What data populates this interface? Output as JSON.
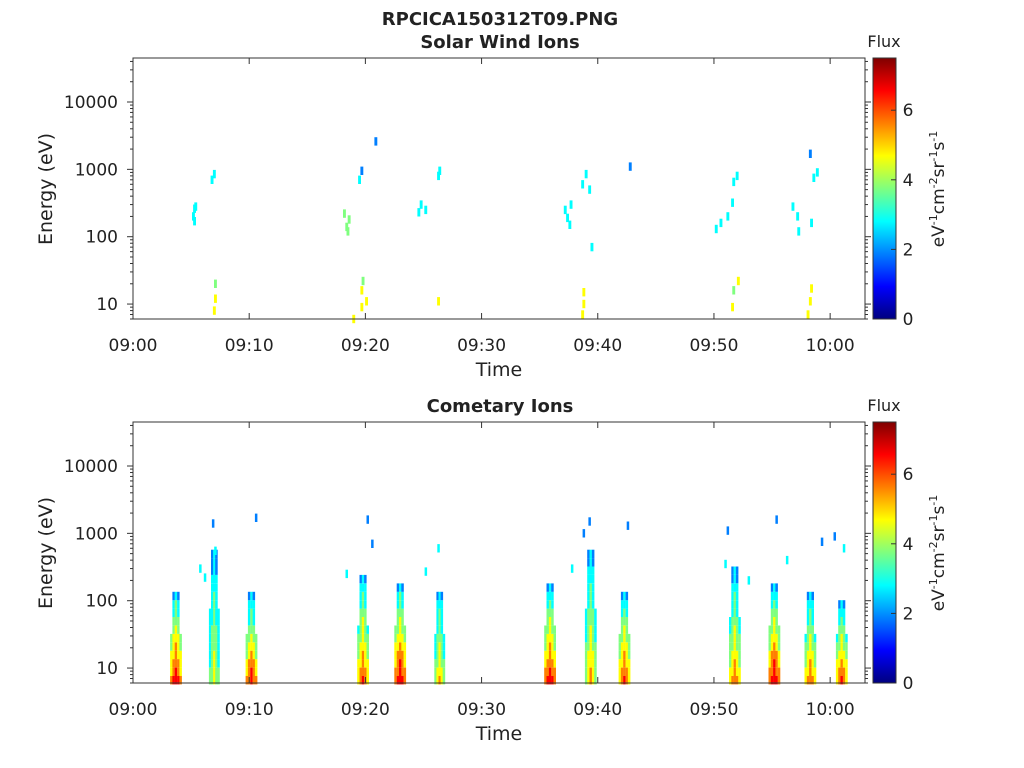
{
  "figure_title": "RPCICA150312T09.PNG",
  "colormap": [
    "#00007f",
    "#0000ff",
    "#007fff",
    "#00ffff",
    "#7fff7f",
    "#ffff00",
    "#ff7f00",
    "#ff0000",
    "#7f0000"
  ],
  "chart_data": [
    {
      "type": "heatmap",
      "title": "Solar Wind Ions",
      "xlabel": "Time",
      "ylabel": "Energy (eV)",
      "x_range": [
        "09:00",
        "10:03"
      ],
      "x_ticks": [
        "09:00",
        "09:10",
        "09:20",
        "09:30",
        "09:40",
        "09:50",
        "10:00"
      ],
      "y_scale": "log",
      "y_range": [
        6,
        45000
      ],
      "y_ticks": [
        "10",
        "100",
        "1000",
        "10000"
      ],
      "colorbar": {
        "title": "Flux",
        "label": "eV-1cm-2sr-1s-1",
        "range": [
          0,
          7.5
        ],
        "ticks": [
          "0",
          "2",
          "4",
          "6"
        ]
      },
      "cells": [
        [
          "09:05.2",
          200,
          3.0
        ],
        [
          "09:05.3",
          260,
          3.2
        ],
        [
          "09:05.4",
          280,
          3.1
        ],
        [
          "09:05.3",
          170,
          2.9
        ],
        [
          "09:06.8",
          700,
          2.6
        ],
        [
          "09:07.0",
          850,
          2.5
        ],
        [
          "09:07.0",
          8,
          4.6
        ],
        [
          "09:07.1",
          12,
          4.4
        ],
        [
          "09:07.1",
          20,
          4.2
        ],
        [
          "09:18.2",
          220,
          3.5
        ],
        [
          "09:18.4",
          140,
          3.8
        ],
        [
          "09:18.6",
          180,
          3.3
        ],
        [
          "09:18.5",
          120,
          3.4
        ],
        [
          "09:19.5",
          700,
          2.4
        ],
        [
          "09:19.7",
          950,
          2.3
        ],
        [
          "09:20.9",
          2600,
          2.0
        ],
        [
          "09:19.0",
          6,
          4.3
        ],
        [
          "09:19.7",
          9,
          4.6
        ],
        [
          "09:19.7",
          16,
          4.5
        ],
        [
          "09:19.8",
          22,
          4.2
        ],
        [
          "09:20.1",
          11,
          4.6
        ],
        [
          "09:24.6",
          230,
          3.0
        ],
        [
          "09:24.8",
          300,
          2.9
        ],
        [
          "09:25.2",
          250,
          3.0
        ],
        [
          "09:26.3",
          800,
          2.5
        ],
        [
          "09:26.4",
          950,
          2.4
        ],
        [
          "09:26.3",
          11,
          4.4
        ],
        [
          "09:37.2",
          250,
          3.0
        ],
        [
          "09:37.4",
          190,
          3.1
        ],
        [
          "09:37.7",
          300,
          3.2
        ],
        [
          "09:37.6",
          150,
          3.0
        ],
        [
          "09:38.7",
          600,
          2.7
        ],
        [
          "09:39.0",
          850,
          2.5
        ],
        [
          "09:39.3",
          500,
          2.6
        ],
        [
          "09:39.5",
          70,
          2.8
        ],
        [
          "09:42.8",
          1100,
          2.2
        ],
        [
          "09:38.7",
          7,
          4.4
        ],
        [
          "09:38.8",
          10,
          4.7
        ],
        [
          "09:38.8",
          15,
          4.3
        ],
        [
          "09:50.2",
          130,
          2.8
        ],
        [
          "09:50.6",
          160,
          2.9
        ],
        [
          "09:51.2",
          200,
          3.0
        ],
        [
          "09:51.6",
          320,
          2.8
        ],
        [
          "09:51.7",
          650,
          2.5
        ],
        [
          "09:52.0",
          800,
          2.6
        ],
        [
          "09:51.6",
          9,
          4.5
        ],
        [
          "09:51.7",
          16,
          4.2
        ],
        [
          "09:52.1",
          22,
          4.3
        ],
        [
          "09:56.8",
          280,
          3.0
        ],
        [
          "09:57.2",
          200,
          3.1
        ],
        [
          "09:58.4",
          160,
          3.0
        ],
        [
          "09:57.3",
          120,
          2.8
        ],
        [
          "09:58.6",
          750,
          2.6
        ],
        [
          "09:58.9",
          900,
          2.5
        ],
        [
          "09:58.3",
          1700,
          2.2
        ],
        [
          "09:58.1",
          7,
          4.5
        ],
        [
          "09:58.3",
          11,
          4.6
        ],
        [
          "09:58.4",
          17,
          4.3
        ]
      ]
    },
    {
      "type": "heatmap",
      "title": "Cometary Ions",
      "xlabel": "Time",
      "ylabel": "Energy (eV)",
      "x_range": [
        "09:00",
        "10:03"
      ],
      "x_ticks": [
        "09:00",
        "09:10",
        "09:20",
        "09:30",
        "09:40",
        "09:50",
        "10:00"
      ],
      "y_scale": "log",
      "y_range": [
        6,
        45000
      ],
      "y_ticks": [
        "10",
        "100",
        "1000",
        "10000"
      ],
      "colorbar": {
        "title": "Flux",
        "label": "eV-1cm-2sr-1s-1",
        "range": [
          0,
          7.5
        ],
        "ticks": [
          "0",
          "2",
          "4",
          "6"
        ]
      },
      "bursts": [
        {
          "center": "09:03.7",
          "width": 1.0,
          "peak": 6.8,
          "tail": 150
        },
        {
          "center": "09:07.0",
          "width": 0.9,
          "peak": 4.8,
          "tail": 500
        },
        {
          "center": "09:10.2",
          "width": 1.0,
          "peak": 6.6,
          "tail": 120
        },
        {
          "center": "09:19.8",
          "width": 1.0,
          "peak": 6.3,
          "tail": 250
        },
        {
          "center": "09:23.0",
          "width": 1.0,
          "peak": 7.0,
          "tail": 200
        },
        {
          "center": "09:26.4",
          "width": 0.9,
          "peak": 5.2,
          "tail": 150
        },
        {
          "center": "09:35.9",
          "width": 1.0,
          "peak": 6.8,
          "tail": 200
        },
        {
          "center": "09:39.4",
          "width": 1.0,
          "peak": 5.4,
          "tail": 600
        },
        {
          "center": "09:42.3",
          "width": 1.0,
          "peak": 6.4,
          "tail": 150
        },
        {
          "center": "09:51.8",
          "width": 1.0,
          "peak": 5.8,
          "tail": 300
        },
        {
          "center": "09:55.2",
          "width": 1.0,
          "peak": 6.9,
          "tail": 200
        },
        {
          "center": "09:58.3",
          "width": 1.0,
          "peak": 6.0,
          "tail": 150
        },
        {
          "center": "10:01.0",
          "width": 1.0,
          "peak": 6.3,
          "tail": 100
        }
      ],
      "sparse_points": [
        [
          "09:05.8",
          300,
          2.4
        ],
        [
          "09:06.2",
          220,
          2.6
        ],
        [
          "09:06.9",
          1400,
          2.2
        ],
        [
          "09:07.1",
          550,
          2.4
        ],
        [
          "09:10.6",
          1700,
          2.2
        ],
        [
          "09:18.4",
          250,
          2.6
        ],
        [
          "09:20.2",
          1600,
          2.1
        ],
        [
          "09:20.6",
          700,
          2.3
        ],
        [
          "09:26.3",
          600,
          2.4
        ],
        [
          "09:25.2",
          270,
          2.5
        ],
        [
          "09:37.8",
          300,
          2.5
        ],
        [
          "09:39.3",
          1500,
          2.1
        ],
        [
          "09:38.8",
          1000,
          2.3
        ],
        [
          "09:42.6",
          1300,
          2.1
        ],
        [
          "09:51.2",
          1100,
          2.2
        ],
        [
          "09:53.0",
          200,
          2.6
        ],
        [
          "09:55.4",
          1600,
          2.2
        ],
        [
          "09:56.3",
          400,
          2.4
        ],
        [
          "09:59.3",
          750,
          2.3
        ],
        [
          "10:00.4",
          900,
          2.2
        ],
        [
          "10:01.2",
          600,
          2.4
        ],
        [
          "09:51.0",
          350,
          2.5
        ]
      ]
    }
  ]
}
